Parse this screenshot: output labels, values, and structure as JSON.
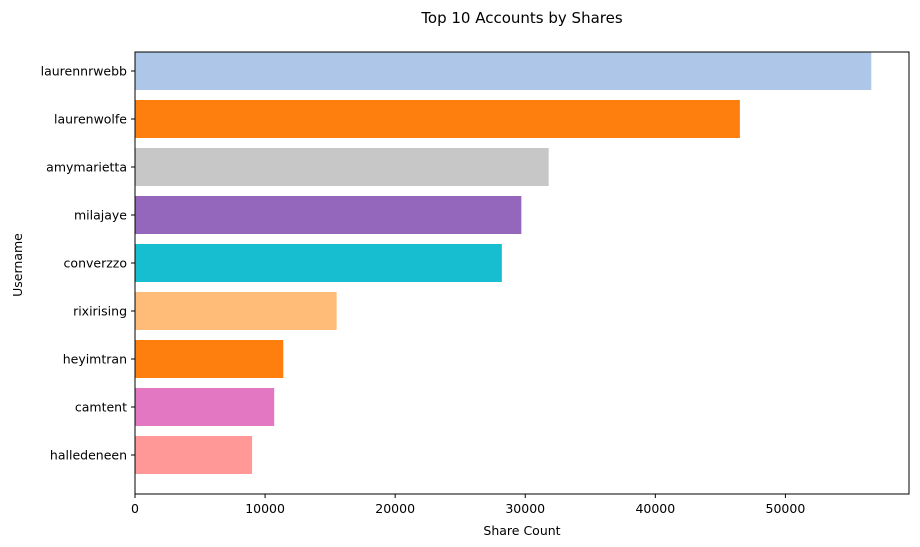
{
  "chart_data": {
    "type": "bar",
    "orientation": "horizontal",
    "title": "Top 10 Accounts by Shares",
    "xlabel": "Share Count",
    "ylabel": "Username",
    "categories": [
      "laurennrwebb",
      "laurenwolfe",
      "amymarietta",
      "milajaye",
      "converzzo",
      "rixirising",
      "heyimtran",
      "camtent",
      "halledeneen"
    ],
    "values": [
      56600,
      46500,
      31800,
      29700,
      28200,
      15500,
      11400,
      10700,
      9000
    ],
    "colors": [
      "#aec7e8",
      "#ff7f0e",
      "#c7c7c7",
      "#9467bd",
      "#17becf",
      "#ffbb78",
      "#ff7f0e",
      "#e377c2",
      "#ff9896"
    ],
    "xlim": [
      0,
      59500
    ],
    "xticks": [
      0,
      10000,
      20000,
      30000,
      40000,
      50000
    ],
    "grid": false
  }
}
